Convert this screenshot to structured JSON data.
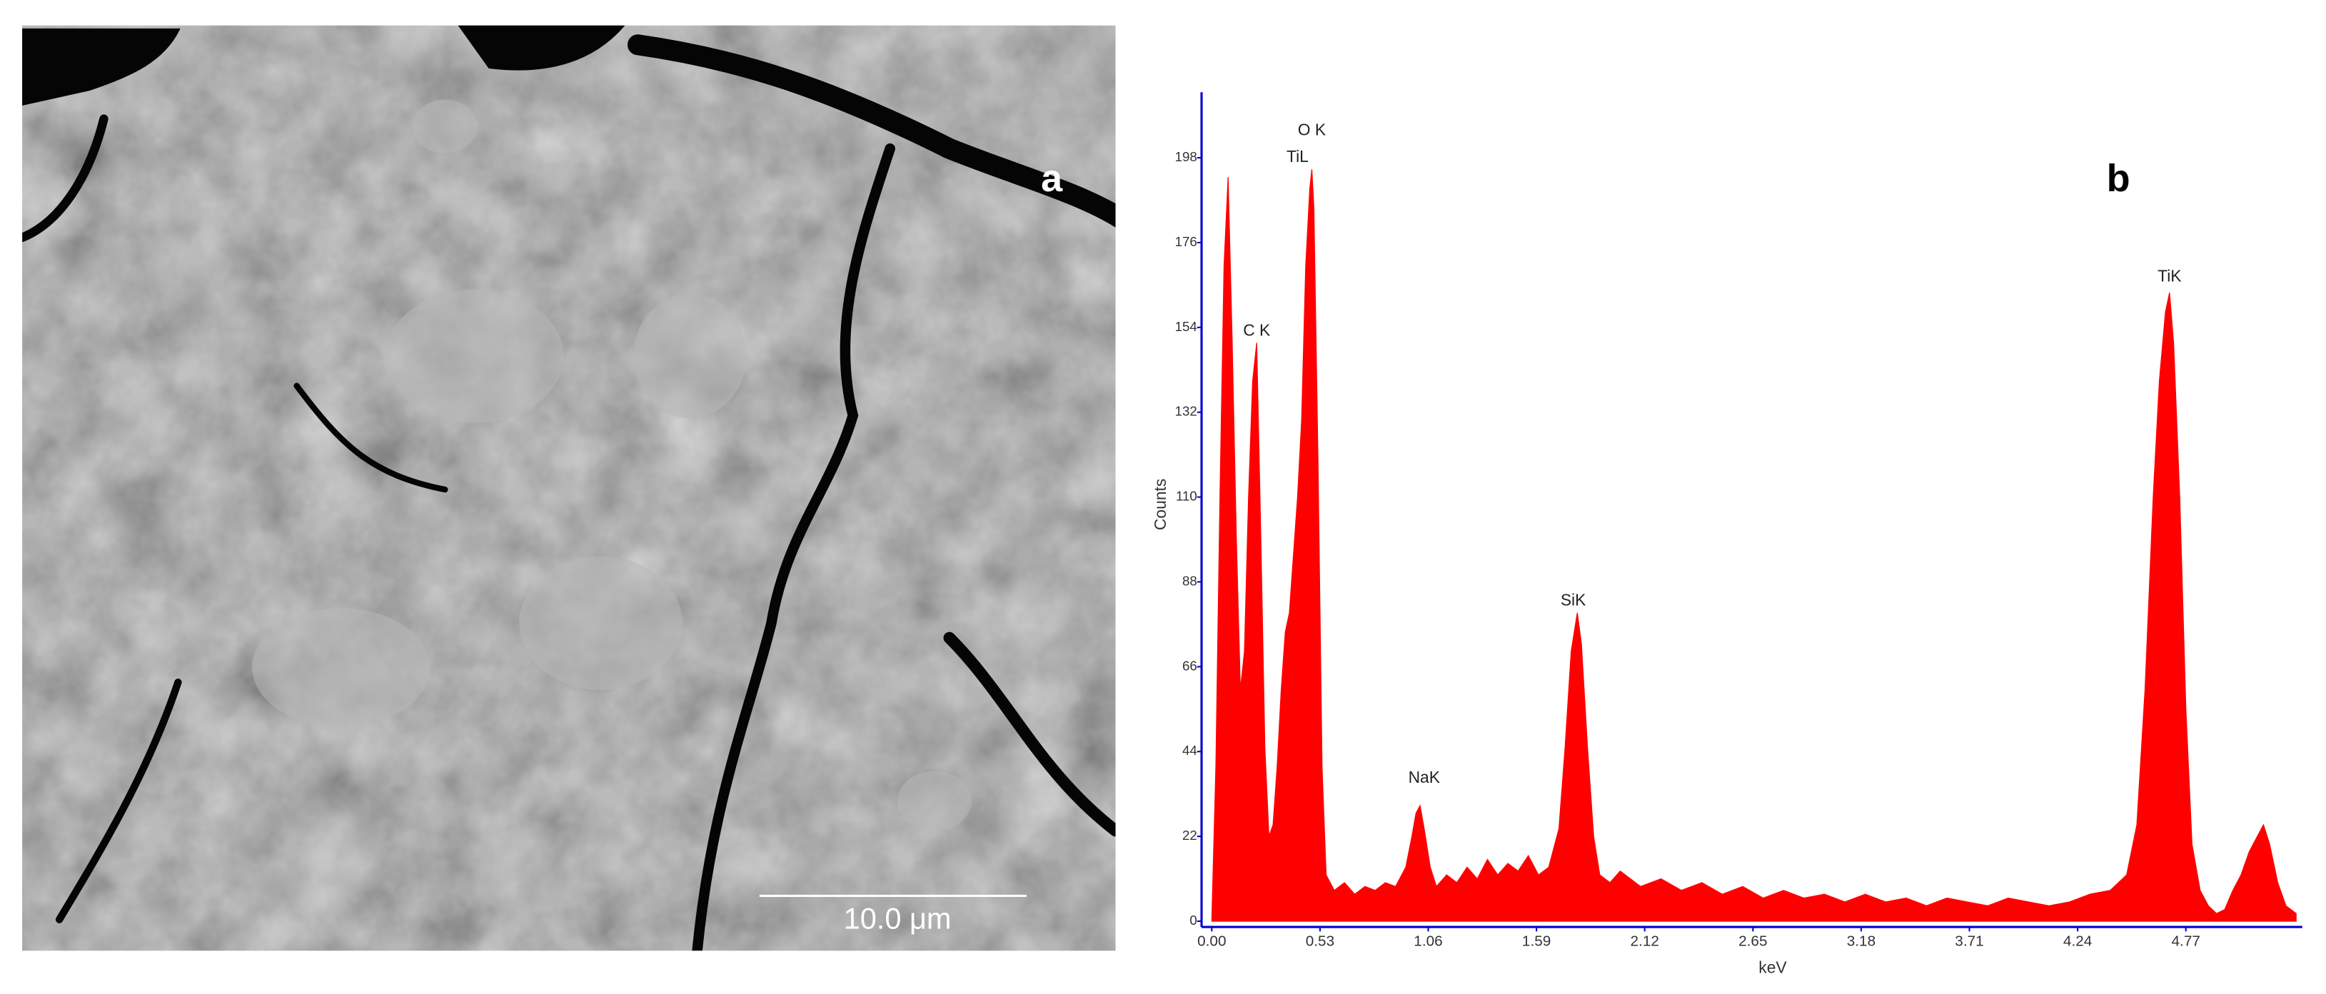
{
  "panel_a": {
    "label": "a",
    "scale_bar": "10.0 μm"
  },
  "chart_data": {
    "type": "area",
    "label": "b",
    "xlabel": "keV",
    "ylabel": "Counts",
    "color": "#ff0000",
    "axis_color": "#0000cc",
    "xlim": [
      -0.05,
      5.34
    ],
    "ylim": [
      -1.5,
      215
    ],
    "xticks": [
      {
        "value": 0,
        "label": "0.00"
      },
      0.53,
      1.06,
      1.59,
      2.12,
      2.65,
      3.18,
      3.71,
      4.24,
      4.77
    ],
    "yticks": [
      0,
      22,
      44,
      66,
      88,
      110,
      132,
      154,
      176,
      198
    ],
    "x": [
      0.0,
      0.02,
      0.04,
      0.06,
      0.08,
      0.1,
      0.12,
      0.14,
      0.16,
      0.18,
      0.2,
      0.22,
      0.24,
      0.26,
      0.28,
      0.3,
      0.32,
      0.34,
      0.36,
      0.38,
      0.4,
      0.42,
      0.44,
      0.46,
      0.48,
      0.49,
      0.5,
      0.52,
      0.54,
      0.56,
      0.6,
      0.65,
      0.7,
      0.75,
      0.8,
      0.85,
      0.9,
      0.95,
      0.98,
      1.0,
      1.02,
      1.04,
      1.07,
      1.1,
      1.15,
      1.2,
      1.25,
      1.3,
      1.35,
      1.4,
      1.45,
      1.5,
      1.55,
      1.6,
      1.65,
      1.7,
      1.73,
      1.76,
      1.79,
      1.81,
      1.84,
      1.87,
      1.9,
      1.95,
      2.0,
      2.1,
      2.2,
      2.3,
      2.4,
      2.5,
      2.6,
      2.7,
      2.8,
      2.9,
      3.0,
      3.1,
      3.2,
      3.3,
      3.4,
      3.5,
      3.6,
      3.7,
      3.8,
      3.9,
      4.0,
      4.1,
      4.2,
      4.3,
      4.4,
      4.48,
      4.53,
      4.57,
      4.61,
      4.64,
      4.67,
      4.69,
      4.71,
      4.74,
      4.77,
      4.8,
      4.84,
      4.88,
      4.92,
      4.96,
      5.0,
      5.04,
      5.08,
      5.12,
      5.15,
      5.18,
      5.22,
      5.26,
      5.31
    ],
    "values": [
      0,
      40,
      110,
      170,
      193,
      150,
      100,
      60,
      70,
      110,
      140,
      150,
      100,
      45,
      22,
      25,
      40,
      60,
      75,
      80,
      95,
      110,
      130,
      170,
      190,
      195,
      185,
      120,
      40,
      12,
      8,
      10,
      7,
      9,
      8,
      10,
      9,
      14,
      22,
      28,
      30,
      24,
      14,
      9,
      12,
      10,
      14,
      11,
      16,
      12,
      15,
      13,
      17,
      12,
      14,
      24,
      45,
      70,
      80,
      72,
      45,
      22,
      12,
      10,
      13,
      9,
      11,
      8,
      10,
      7,
      9,
      6,
      8,
      6,
      7,
      5,
      7,
      5,
      6,
      4,
      6,
      5,
      4,
      6,
      5,
      4,
      5,
      7,
      8,
      12,
      25,
      60,
      110,
      140,
      158,
      163,
      150,
      110,
      55,
      20,
      8,
      4,
      2,
      3,
      8,
      12,
      18,
      22,
      25,
      20,
      10,
      4,
      2
    ],
    "annotations": [
      {
        "text": "C K",
        "x": 0.22,
        "y": 153
      },
      {
        "text": "O K",
        "x": 0.49,
        "y": 205
      },
      {
        "text": "TiL",
        "x": 0.42,
        "y": 198
      },
      {
        "text": "NaK",
        "x": 1.04,
        "y": 37
      },
      {
        "text": "SiK",
        "x": 1.77,
        "y": 83
      },
      {
        "text": "TiK",
        "x": 4.69,
        "y": 167
      }
    ]
  }
}
